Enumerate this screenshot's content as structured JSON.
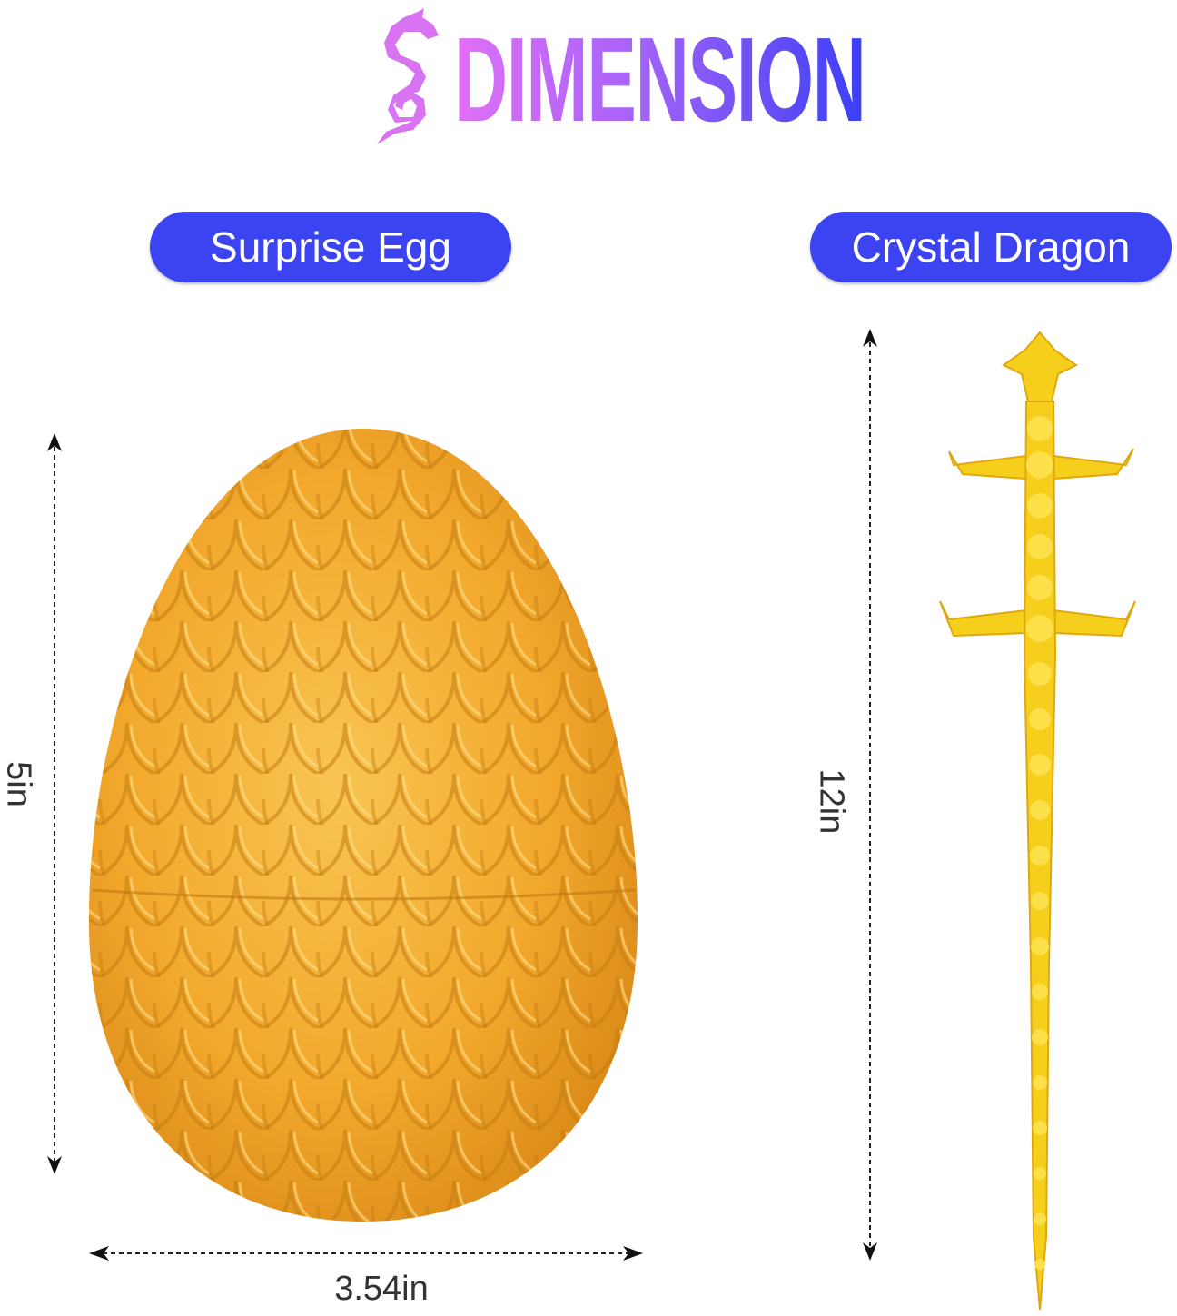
{
  "brand": {
    "name": "DIMENSION",
    "logo_icon": "dragon-icon",
    "gradient": [
      "#e070f5",
      "#a462f8",
      "#3a40f5"
    ]
  },
  "products": [
    {
      "label": "Surprise Egg",
      "height": "5in",
      "width": "3.54in",
      "color": "#f2a92a"
    },
    {
      "label": "Crystal Dragon",
      "length": "12in",
      "color": "#f7d21e"
    }
  ],
  "pill_color": "#3b44f0"
}
